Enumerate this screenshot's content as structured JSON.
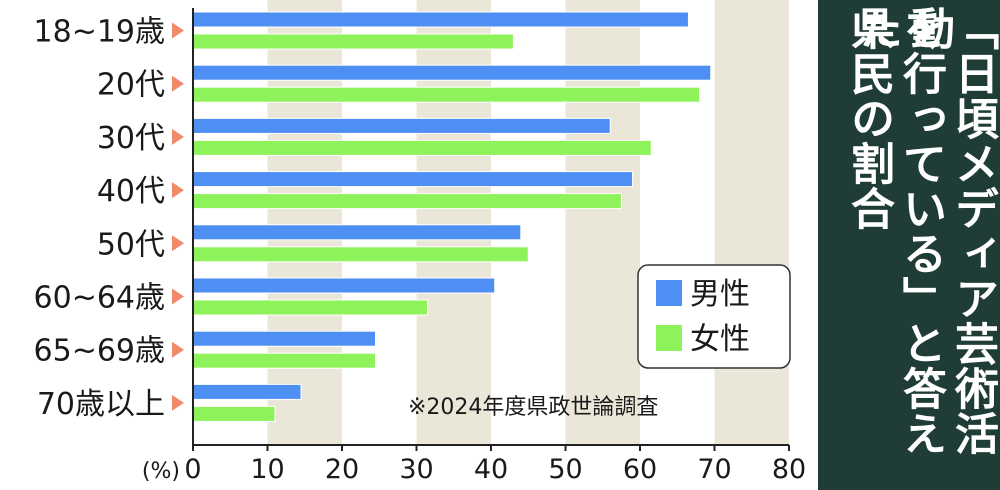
{
  "chart_data": {
    "type": "bar",
    "orientation": "horizontal",
    "title_lines": [
      "「日頃メディア芸術活動",
      "を行っている」と答えた",
      "県民の割合"
    ],
    "categories": [
      "18~19歳",
      "20代",
      "30代",
      "40代",
      "50代",
      "60~64歳",
      "65~69歳",
      "70歳以上"
    ],
    "series": [
      {
        "name": "男性",
        "color": "#4d8ff2",
        "values": [
          66.5,
          69.5,
          56,
          59,
          44,
          40.5,
          24.5,
          14.5
        ]
      },
      {
        "name": "女性",
        "color": "#8ef25a",
        "values": [
          43,
          68,
          61.5,
          57.5,
          45,
          31.5,
          24.5,
          11
        ]
      }
    ],
    "x_unit_label": "(%)",
    "x_ticks": [
      0,
      10,
      20,
      30,
      40,
      50,
      60,
      70,
      80
    ],
    "xlim": [
      0,
      80
    ],
    "legend_position": "right-middle",
    "note": "※2024年度県政世論調査",
    "band_colors": [
      "#ffffff",
      "#ebe7d8"
    ]
  }
}
